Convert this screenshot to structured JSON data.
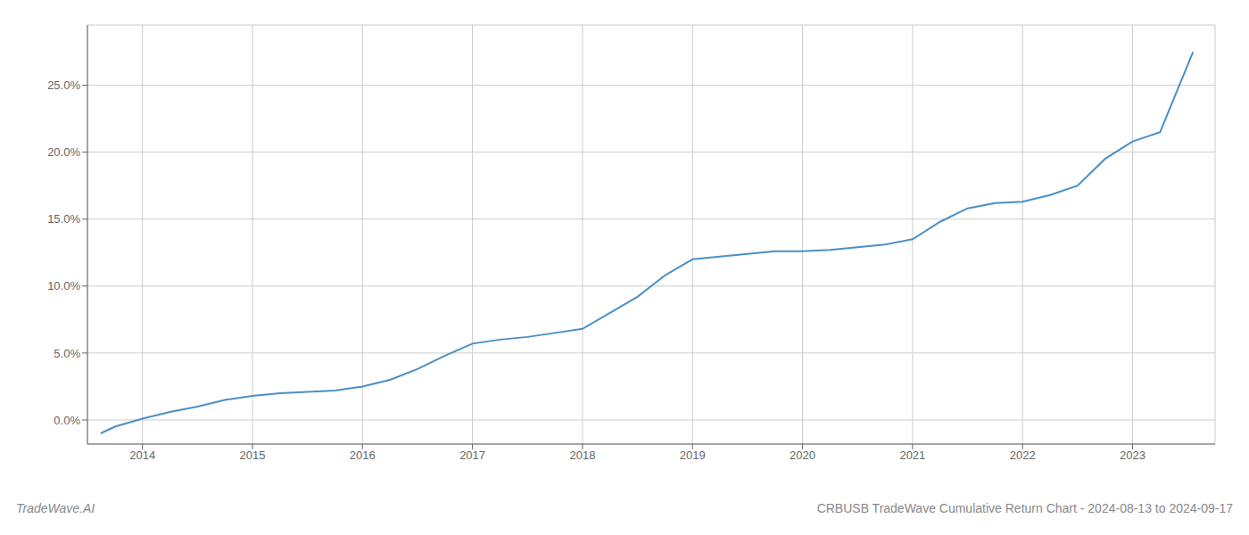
{
  "chart_data": {
    "type": "line",
    "title": "CRBUSB TradeWave Cumulative Return Chart - 2024-08-13 to 2024-09-17",
    "annotations": [
      "TradeWave.AI"
    ],
    "x": [
      2013.62,
      2013.75,
      2014.0,
      2014.25,
      2014.5,
      2014.75,
      2015.0,
      2015.25,
      2015.5,
      2015.75,
      2016.0,
      2016.25,
      2016.5,
      2016.75,
      2017.0,
      2017.25,
      2017.5,
      2017.75,
      2018.0,
      2018.25,
      2018.5,
      2018.75,
      2019.0,
      2019.25,
      2019.5,
      2019.75,
      2020.0,
      2020.25,
      2020.5,
      2020.75,
      2021.0,
      2021.25,
      2021.5,
      2021.75,
      2022.0,
      2022.25,
      2022.5,
      2022.75,
      2023.0,
      2023.25,
      2023.55
    ],
    "values": [
      -0.01,
      -0.005,
      0.001,
      0.006,
      0.01,
      0.015,
      0.018,
      0.02,
      0.021,
      0.022,
      0.025,
      0.03,
      0.038,
      0.048,
      0.057,
      0.06,
      0.062,
      0.065,
      0.068,
      0.08,
      0.092,
      0.108,
      0.12,
      0.122,
      0.124,
      0.126,
      0.126,
      0.127,
      0.129,
      0.131,
      0.135,
      0.148,
      0.158,
      0.162,
      0.163,
      0.168,
      0.175,
      0.195,
      0.208,
      0.215,
      0.275
    ],
    "color": "#4a90c4",
    "xlim": [
      2013.5,
      2023.75
    ],
    "ylim": [
      -0.018,
      0.295
    ],
    "xticks": [
      2014,
      2015,
      2016,
      2017,
      2018,
      2019,
      2020,
      2021,
      2022,
      2023
    ],
    "yticks": [
      {
        "value": 0.0,
        "label": "0.0%"
      },
      {
        "value": 0.05,
        "label": "5.0%"
      },
      {
        "value": 0.1,
        "label": "10.0%"
      },
      {
        "value": 0.15,
        "label": "15.0%"
      },
      {
        "value": 0.2,
        "label": "20.0%"
      },
      {
        "value": 0.25,
        "label": "25.0%"
      }
    ],
    "grid": true
  }
}
